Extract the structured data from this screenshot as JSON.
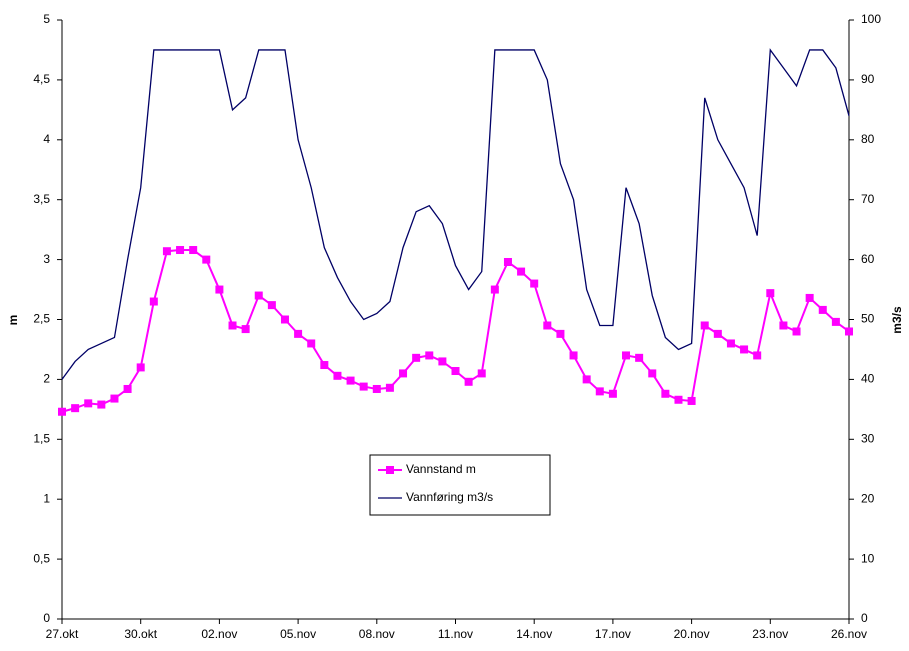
{
  "chart_data": {
    "type": "line",
    "x": [
      0,
      0.5,
      1,
      1.5,
      2,
      2.5,
      3,
      3.5,
      4,
      4.5,
      5,
      5.5,
      6,
      6.5,
      7,
      7.5,
      8,
      8.5,
      9,
      9.5,
      10,
      10.5,
      11,
      11.5,
      12,
      12.5,
      13,
      13.5,
      14,
      14.5,
      15,
      15.5,
      16,
      16.5,
      17,
      17.5,
      18,
      18.5,
      19,
      19.5,
      20,
      20.5,
      21,
      21.5,
      22,
      22.5,
      23,
      23.5,
      24,
      24.5,
      25,
      25.5,
      26,
      26.5,
      27,
      27.5,
      28,
      28.5,
      29,
      29.5,
      30
    ],
    "xlim": [
      0,
      30
    ],
    "xticks": [
      {
        "value": 0,
        "label": "27.okt"
      },
      {
        "value": 3,
        "label": "30.okt"
      },
      {
        "value": 6,
        "label": "02.nov"
      },
      {
        "value": 9,
        "label": "05.nov"
      },
      {
        "value": 12,
        "label": "08.nov"
      },
      {
        "value": 15,
        "label": "11.nov"
      },
      {
        "value": 18,
        "label": "14.nov"
      },
      {
        "value": 21,
        "label": "17.nov"
      },
      {
        "value": 24,
        "label": "20.nov"
      },
      {
        "value": 27,
        "label": "23.nov"
      },
      {
        "value": 30,
        "label": "26.nov"
      }
    ],
    "y_label": "m",
    "y2_label": "m3/s",
    "ylim": [
      0,
      5
    ],
    "yticks": [
      0,
      {
        "value": 0.5,
        "label": "0,5"
      },
      1,
      {
        "value": 1.5,
        "label": "1,5"
      },
      2,
      {
        "value": 2.5,
        "label": "2,5"
      },
      3,
      {
        "value": 3.5,
        "label": "3,5"
      },
      4,
      {
        "value": 4.5,
        "label": "4,5"
      },
      5
    ],
    "y2lim": [
      0,
      100
    ],
    "y2ticks": [
      0,
      10,
      20,
      30,
      40,
      50,
      60,
      70,
      80,
      90,
      100
    ],
    "legend": "center",
    "series": [
      {
        "name": "Vannstand m",
        "color": "#ff00ff",
        "axis": "y",
        "values": [
          1.73,
          1.76,
          1.8,
          1.79,
          1.84,
          1.92,
          2.1,
          2.65,
          3.07,
          3.08,
          3.08,
          3.0,
          2.75,
          2.45,
          2.42,
          2.7,
          2.62,
          2.5,
          2.38,
          2.3,
          2.12,
          2.03,
          1.99,
          1.94,
          1.92,
          1.93,
          2.05,
          2.18,
          2.2,
          2.15,
          2.07,
          1.98,
          2.05,
          2.75,
          2.98,
          2.9,
          2.8,
          2.45,
          2.38,
          2.2,
          2.0,
          1.9,
          1.88,
          2.2,
          2.18,
          2.05,
          1.88,
          1.83,
          1.82,
          2.45,
          2.38,
          2.3,
          2.25,
          2.2,
          2.72,
          2.45,
          2.4,
          2.68,
          2.58,
          2.48,
          2.4
        ]
      },
      {
        "name": "Vannføring m3/s",
        "color": "#000066",
        "axis": "y2",
        "values": [
          40,
          43,
          45,
          46,
          47,
          60,
          72,
          95,
          95,
          95,
          95,
          95,
          95,
          85,
          87,
          95,
          95,
          95,
          80,
          72,
          62,
          57,
          53,
          50,
          51,
          53,
          62,
          68,
          69,
          66,
          59,
          55,
          58,
          95,
          95,
          95,
          95,
          90,
          76,
          70,
          55,
          49,
          49,
          72,
          66,
          54,
          47,
          45,
          46,
          87,
          80,
          76,
          72,
          64,
          95,
          92,
          89,
          95,
          95,
          92,
          84
        ]
      }
    ]
  }
}
